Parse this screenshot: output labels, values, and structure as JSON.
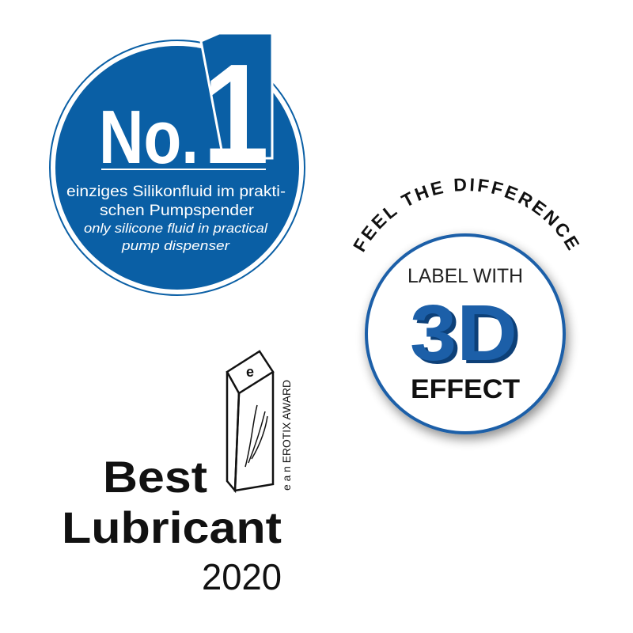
{
  "badge_no1": {
    "prefix": "No.",
    "number": "1",
    "german_line1": "einziges Silikonfluid im prakti-",
    "german_line2": "schen Pumpspender",
    "english_line1": "only silicone fluid in practical",
    "english_line2": "pump dispenser",
    "color": "#0a5fa5"
  },
  "badge_3d": {
    "arc_text": "FEEL THE DIFFERENCE",
    "line1": "LABEL WITH",
    "big": "3D",
    "line3": "EFFECT",
    "accent": "#1a5fa8"
  },
  "award": {
    "line1": "Best",
    "line2": "Lubricant",
    "year": "2020",
    "vertical_text": "e a n EROTIX AWARD",
    "trophy_letter": "e"
  }
}
